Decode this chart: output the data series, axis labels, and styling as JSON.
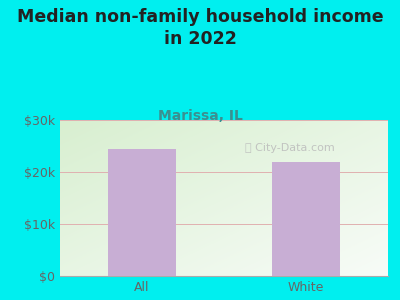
{
  "title": "Median non-family household income\nin 2022",
  "subtitle": "Marissa, IL",
  "categories": [
    "All",
    "White"
  ],
  "values": [
    24500,
    22000
  ],
  "bar_color": "#c8aed4",
  "background_outer": "#00efef",
  "background_inner_left": "#d8efd0",
  "background_inner_right": "#f0f8f0",
  "ylim": [
    0,
    30000
  ],
  "yticks": [
    0,
    10000,
    20000,
    30000
  ],
  "ytick_labels": [
    "$0",
    "$10k",
    "$20k",
    "$30k"
  ],
  "grid_color": "#e0b0b0",
  "title_fontsize": 12.5,
  "subtitle_fontsize": 10,
  "tick_fontsize": 9,
  "title_color": "#222222",
  "subtitle_color": "#3a9090",
  "tick_color": "#666666",
  "watermark_color": "#bbbbbb"
}
